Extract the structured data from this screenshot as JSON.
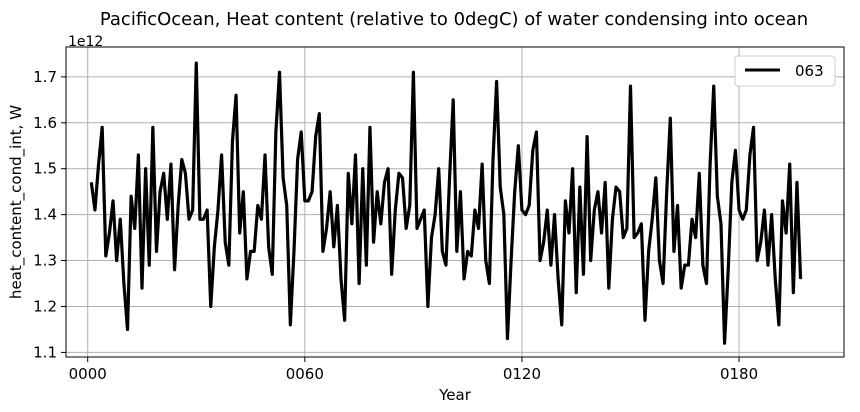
{
  "chart_data": {
    "type": "line",
    "title": "PacificOcean, Heat content (relative to 0degC) of water condensing into ocean",
    "xlabel": "Year",
    "ylabel": "heat_content_cond_int, W",
    "y_offset_label": "1e12",
    "xlim": [
      -6,
      209
    ],
    "ylim": [
      1.09,
      1.765
    ],
    "x_ticks": [
      0,
      60,
      120,
      180
    ],
    "x_tick_labels": [
      "0000",
      "0060",
      "0120",
      "0180"
    ],
    "y_ticks": [
      1.1,
      1.2,
      1.3,
      1.4,
      1.5,
      1.6,
      1.7
    ],
    "y_tick_labels": [
      "1.1",
      "1.2",
      "1.3",
      "1.4",
      "1.5",
      "1.6",
      "1.7"
    ],
    "grid": true,
    "legend_position": "top-right",
    "series": [
      {
        "name": "063",
        "color": "#000000",
        "x_start": 1,
        "x_step": 1,
        "values": [
          1.47,
          1.41,
          1.51,
          1.59,
          1.31,
          1.36,
          1.43,
          1.3,
          1.39,
          1.25,
          1.15,
          1.44,
          1.37,
          1.53,
          1.24,
          1.5,
          1.29,
          1.59,
          1.32,
          1.45,
          1.49,
          1.39,
          1.51,
          1.28,
          1.42,
          1.52,
          1.49,
          1.39,
          1.41,
          1.73,
          1.39,
          1.39,
          1.41,
          1.2,
          1.33,
          1.41,
          1.53,
          1.34,
          1.29,
          1.56,
          1.66,
          1.36,
          1.45,
          1.26,
          1.32,
          1.32,
          1.42,
          1.39,
          1.53,
          1.33,
          1.27,
          1.58,
          1.71,
          1.48,
          1.42,
          1.16,
          1.32,
          1.52,
          1.58,
          1.43,
          1.43,
          1.45,
          1.57,
          1.62,
          1.32,
          1.37,
          1.45,
          1.33,
          1.42,
          1.26,
          1.17,
          1.49,
          1.38,
          1.53,
          1.25,
          1.5,
          1.29,
          1.59,
          1.34,
          1.45,
          1.38,
          1.47,
          1.5,
          1.27,
          1.41,
          1.49,
          1.48,
          1.37,
          1.42,
          1.71,
          1.37,
          1.39,
          1.41,
          1.2,
          1.35,
          1.4,
          1.5,
          1.32,
          1.29,
          1.48,
          1.65,
          1.32,
          1.45,
          1.26,
          1.32,
          1.31,
          1.41,
          1.37,
          1.51,
          1.3,
          1.25,
          1.52,
          1.69,
          1.46,
          1.4,
          1.13,
          1.3,
          1.45,
          1.55,
          1.41,
          1.4,
          1.42,
          1.54,
          1.58,
          1.3,
          1.34,
          1.41,
          1.29,
          1.4,
          1.26,
          1.16,
          1.43,
          1.36,
          1.5,
          1.23,
          1.46,
          1.27,
          1.57,
          1.3,
          1.41,
          1.45,
          1.36,
          1.47,
          1.24,
          1.39,
          1.46,
          1.45,
          1.35,
          1.37,
          1.68,
          1.35,
          1.36,
          1.38,
          1.17,
          1.32,
          1.39,
          1.48,
          1.3,
          1.25,
          1.45,
          1.61,
          1.32,
          1.42,
          1.24,
          1.29,
          1.29,
          1.39,
          1.35,
          1.49,
          1.29,
          1.25,
          1.51,
          1.68,
          1.44,
          1.38,
          1.12,
          1.28,
          1.47,
          1.54,
          1.41,
          1.39,
          1.41,
          1.53,
          1.59,
          1.3,
          1.34,
          1.41,
          1.29,
          1.4,
          1.26,
          1.16,
          1.43,
          1.36,
          1.51,
          1.23,
          1.47,
          1.26
        ]
      }
    ]
  }
}
